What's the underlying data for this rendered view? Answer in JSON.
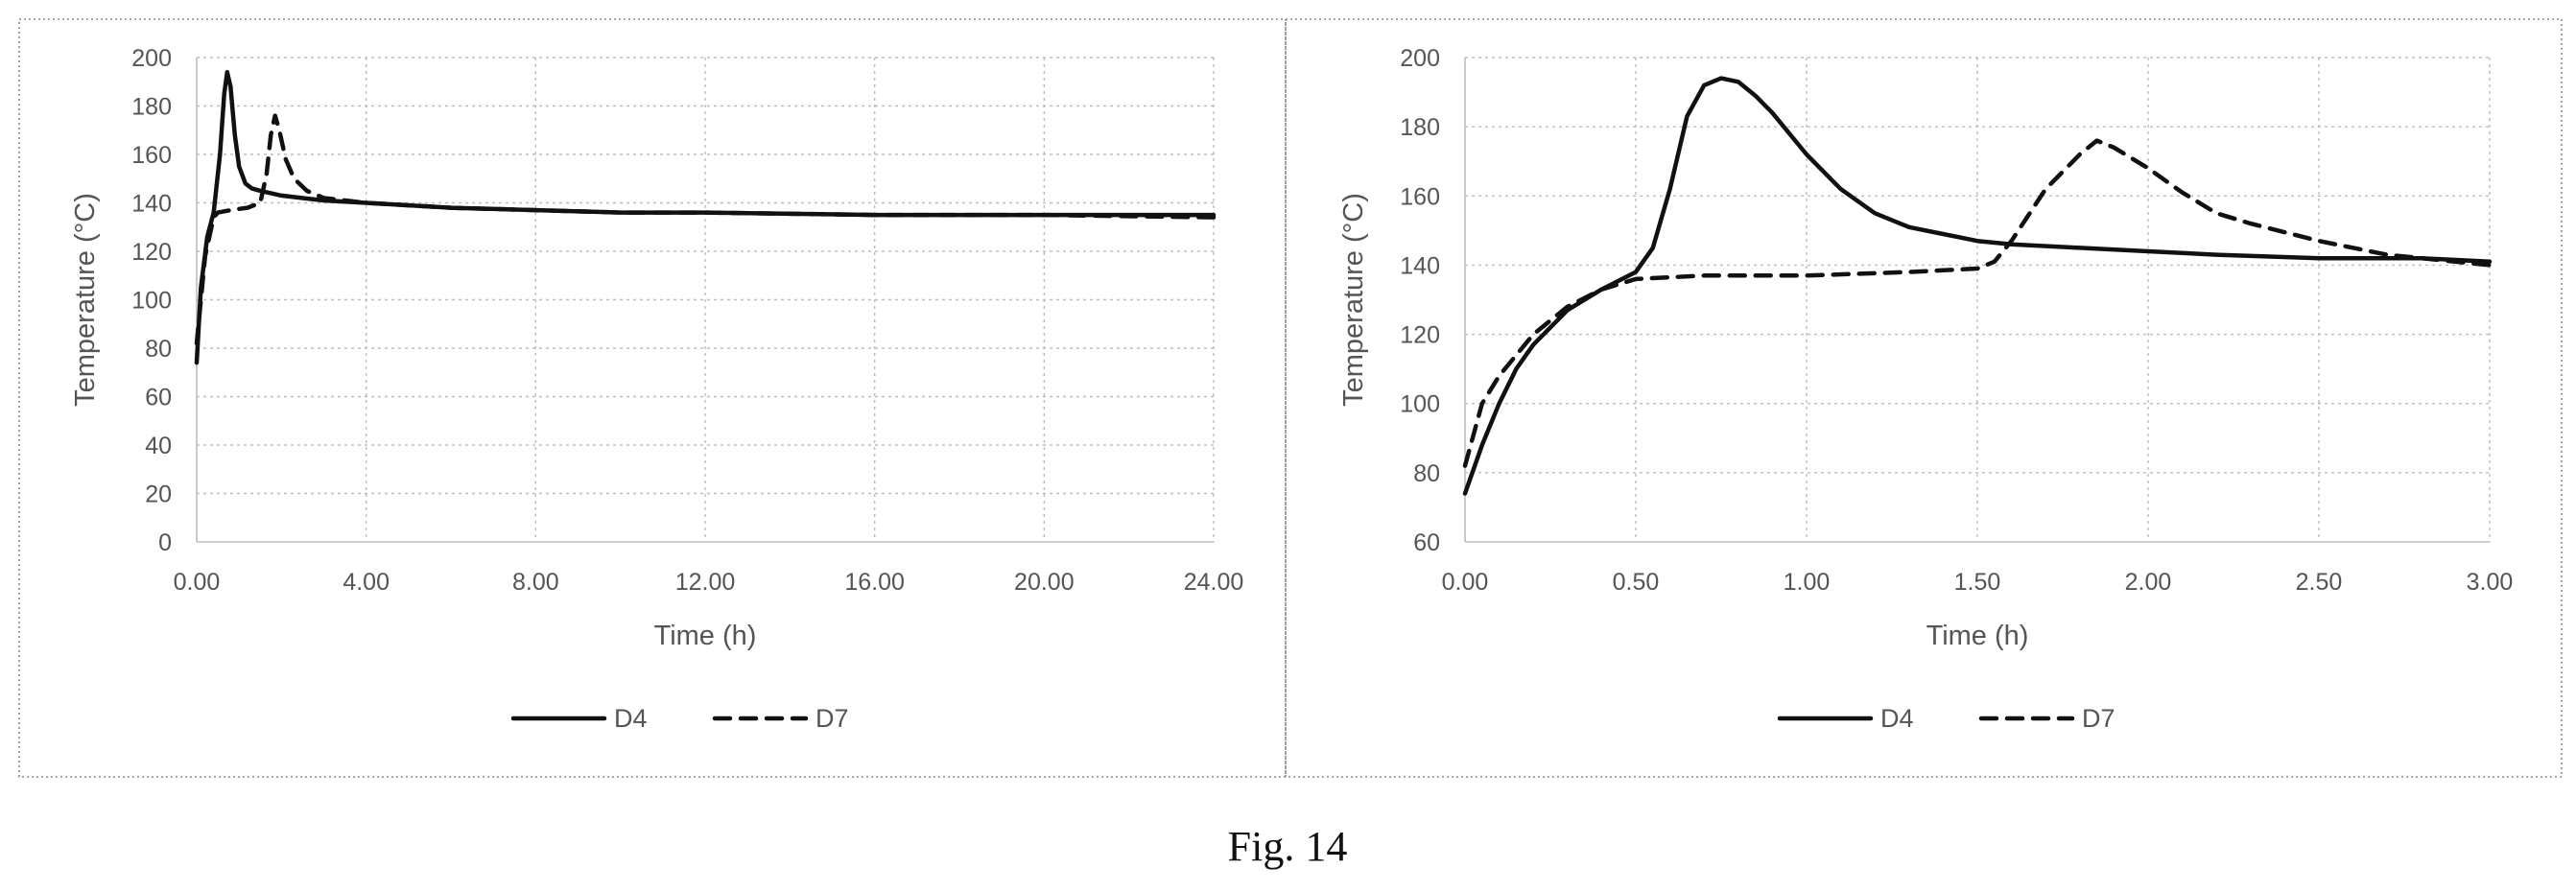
{
  "caption": "Fig. 14",
  "chart_data": [
    {
      "type": "line",
      "xlabel": "Time (h)",
      "ylabel": "Temperature (°C)",
      "xlim": [
        0,
        24
      ],
      "ylim": [
        0,
        200
      ],
      "x_ticks": [
        "0.00",
        "4.00",
        "8.00",
        "12.00",
        "16.00",
        "20.00",
        "24.00"
      ],
      "y_ticks": [
        "0",
        "20",
        "40",
        "60",
        "80",
        "100",
        "120",
        "140",
        "160",
        "180",
        "200"
      ],
      "grid": true,
      "legend": "bottom",
      "series": [
        {
          "name": "D4",
          "style": "solid",
          "x": [
            0,
            0.1,
            0.25,
            0.4,
            0.55,
            0.65,
            0.72,
            0.8,
            0.9,
            1.0,
            1.15,
            1.3,
            1.5,
            2.0,
            2.5,
            3.0,
            4.0,
            6.0,
            8.0,
            10.0,
            12.0,
            16.0,
            20.0,
            24.0
          ],
          "values": [
            74,
            105,
            126,
            136,
            160,
            185,
            194,
            188,
            168,
            155,
            148,
            146,
            145,
            143,
            142,
            141,
            140,
            138,
            137,
            136,
            136,
            135,
            135,
            135
          ]
        },
        {
          "name": "D7",
          "style": "dashed",
          "x": [
            0,
            0.2,
            0.4,
            0.5,
            0.8,
            1.2,
            1.5,
            1.65,
            1.75,
            1.85,
            1.95,
            2.1,
            2.3,
            2.6,
            3.0,
            4.0,
            6.0,
            8.0,
            10.0,
            12.0,
            16.0,
            20.0,
            24.0
          ],
          "values": [
            82,
            118,
            134,
            136,
            137,
            138,
            140,
            152,
            168,
            176,
            170,
            158,
            150,
            145,
            142,
            140,
            138,
            137,
            136,
            136,
            135,
            135,
            134
          ]
        }
      ]
    },
    {
      "type": "line",
      "xlabel": "Time (h)",
      "ylabel": "Temperature (°C)",
      "xlim": [
        0,
        3
      ],
      "ylim": [
        60,
        200
      ],
      "x_ticks": [
        "0.00",
        "0.50",
        "1.00",
        "1.50",
        "2.00",
        "2.50",
        "3.00"
      ],
      "y_ticks": [
        "60",
        "80",
        "100",
        "120",
        "140",
        "160",
        "180",
        "200"
      ],
      "grid": true,
      "legend": "bottom",
      "series": [
        {
          "name": "D4",
          "style": "solid",
          "x": [
            0,
            0.05,
            0.1,
            0.15,
            0.2,
            0.3,
            0.4,
            0.5,
            0.55,
            0.6,
            0.65,
            0.7,
            0.75,
            0.8,
            0.85,
            0.9,
            1.0,
            1.1,
            1.2,
            1.3,
            1.4,
            1.5,
            1.6,
            1.8,
            2.0,
            2.2,
            2.5,
            2.8,
            3.0
          ],
          "values": [
            74,
            88,
            100,
            110,
            117,
            127,
            133,
            138,
            145,
            162,
            183,
            192,
            194,
            193,
            189,
            184,
            172,
            162,
            155,
            151,
            149,
            147,
            146,
            145,
            144,
            143,
            142,
            142,
            141
          ]
        },
        {
          "name": "D7",
          "style": "dashed",
          "x": [
            0,
            0.05,
            0.1,
            0.2,
            0.3,
            0.4,
            0.5,
            0.7,
            1.0,
            1.3,
            1.5,
            1.55,
            1.6,
            1.7,
            1.8,
            1.85,
            1.9,
            2.0,
            2.1,
            2.2,
            2.3,
            2.5,
            2.7,
            3.0
          ],
          "values": [
            82,
            100,
            108,
            120,
            128,
            133,
            136,
            137,
            137,
            138,
            139,
            141,
            147,
            162,
            172,
            176,
            174,
            168,
            161,
            155,
            152,
            147,
            143,
            140
          ]
        }
      ]
    }
  ]
}
